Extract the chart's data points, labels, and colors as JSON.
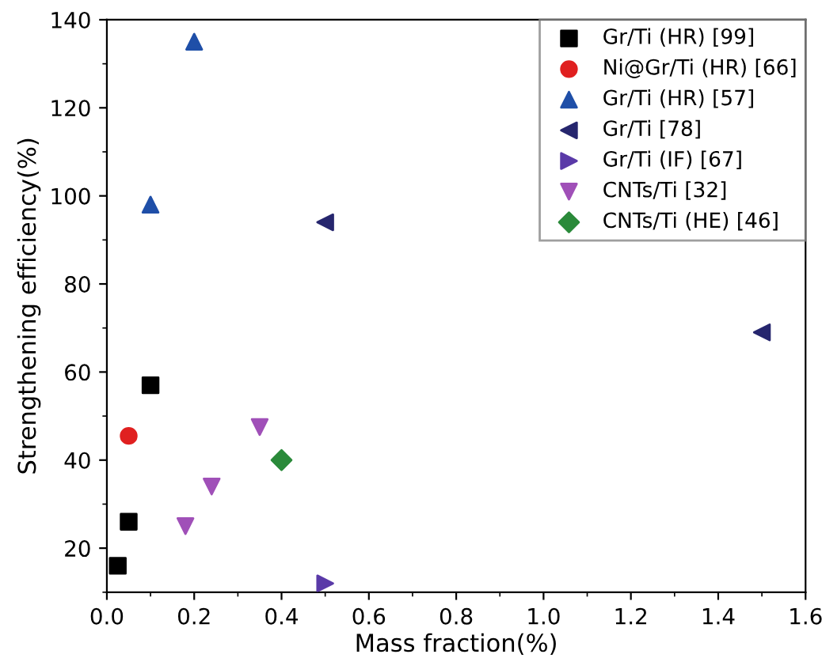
{
  "chart_data": {
    "type": "scatter",
    "xlabel": "Mass fraction(%)",
    "ylabel": "Strengthening efficiency(%)",
    "xlim": [
      0.0,
      1.6
    ],
    "xticks": [
      {
        "value": 0,
        "label": "0.0"
      },
      0.2,
      0.4,
      0.6,
      0.8,
      {
        "value": 1,
        "label": "1.0"
      },
      1.2,
      1.4,
      1.6
    ],
    "ylim": [
      10,
      140
    ],
    "yticks": [
      20,
      40,
      60,
      80,
      100,
      120,
      140
    ],
    "grid": false,
    "legend": "top right",
    "series": [
      {
        "name": "Gr/Ti (HR) [99]",
        "color": "#000000",
        "marker": "square",
        "x": [
          0.025,
          0.05,
          0.1
        ],
        "values": [
          16,
          26,
          57
        ]
      },
      {
        "name": "Ni@Gr/Ti (HR) [66]",
        "color": "#e02020",
        "marker": "circle",
        "x": [
          0.05
        ],
        "values": [
          45.5
        ]
      },
      {
        "name": "Gr/Ti (HR) [57]",
        "color": "#1f4fa8",
        "marker": "triangle",
        "x": [
          0.1,
          0.2
        ],
        "values": [
          98,
          135
        ]
      },
      {
        "name": "Gr/Ti [78]",
        "color": "#26266e",
        "marker": "triangle-left",
        "x": [
          0.5,
          1.5
        ],
        "values": [
          94,
          69
        ]
      },
      {
        "name": "Gr/Ti (IF) [67]",
        "color": "#5a3aa8",
        "marker": "triangle-right",
        "x": [
          0.5
        ],
        "values": [
          12
        ]
      },
      {
        "name": "CNTs/Ti [32]",
        "color": "#a050b8",
        "marker": "triangle-down",
        "x": [
          0.18,
          0.24,
          0.35
        ],
        "values": [
          25,
          34,
          47.5
        ]
      },
      {
        "name": "CNTs/Ti (HE) [46]",
        "color": "#2a8a3a",
        "marker": "diamond",
        "x": [
          0.4
        ],
        "values": [
          40
        ]
      }
    ]
  }
}
